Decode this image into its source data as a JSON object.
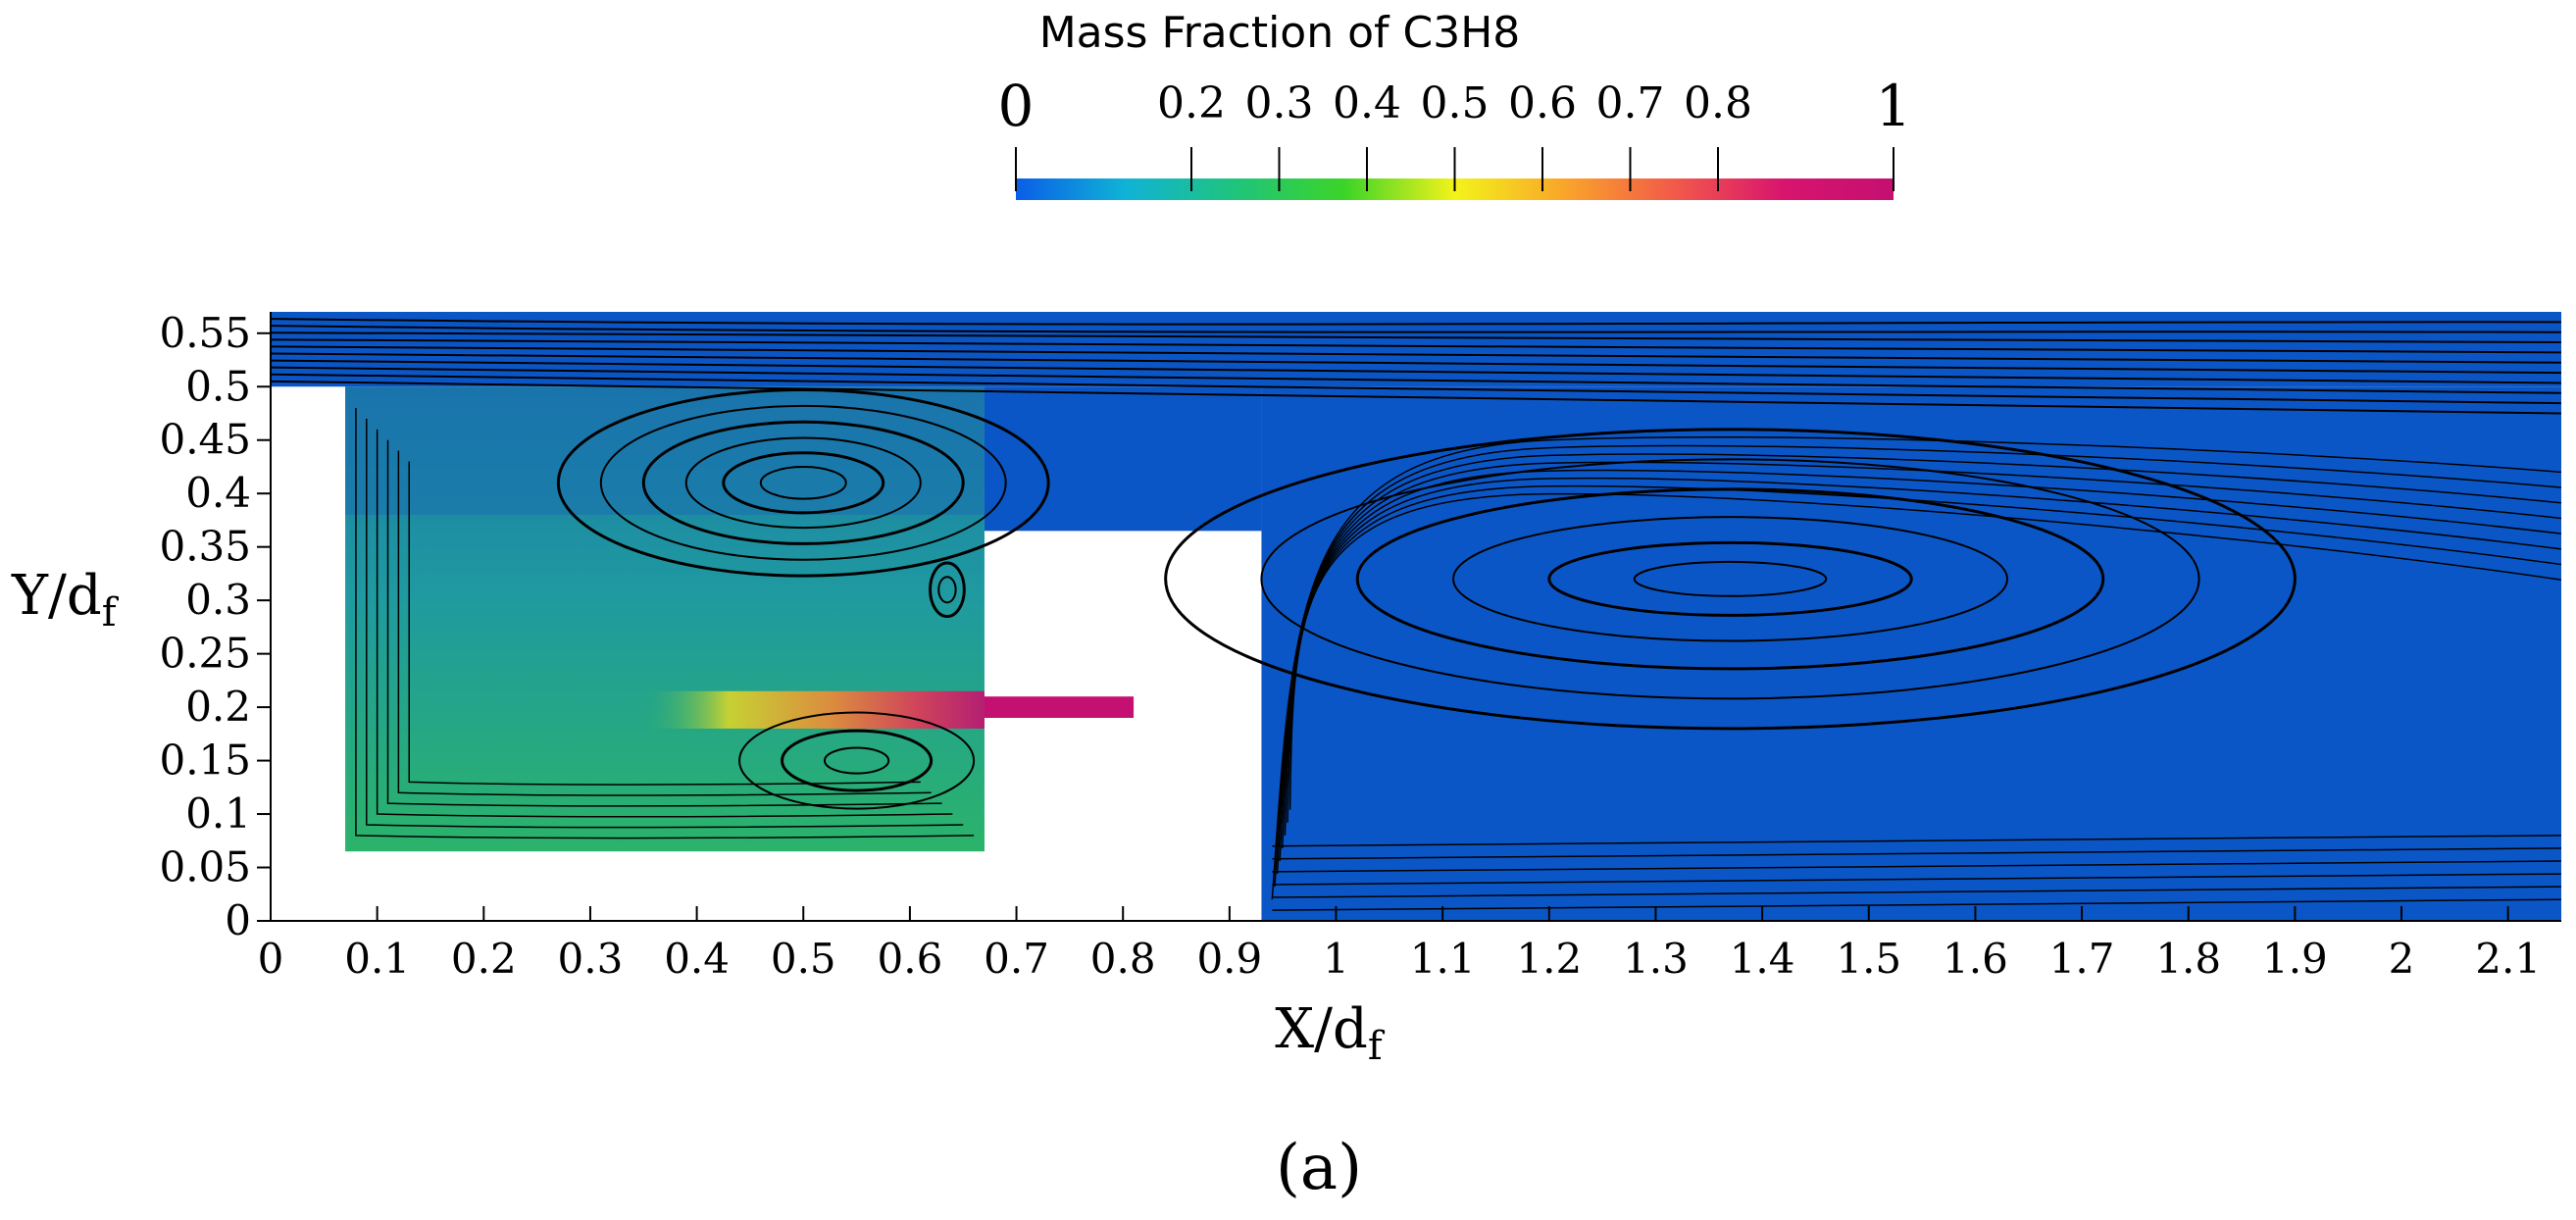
{
  "chart_data": {
    "type": "heatmap",
    "title": "Mass Fraction of C3H8",
    "subfigure_label": "(a)",
    "xlabel": {
      "main": "X/d",
      "sub": "f"
    },
    "ylabel": {
      "main": "Y/d",
      "sub": "f"
    },
    "xlim": [
      0,
      2.15
    ],
    "ylim": [
      0,
      0.57
    ],
    "x_ticks": [
      0,
      0.1,
      0.2,
      0.3,
      0.4,
      0.5,
      0.6,
      0.7,
      0.8,
      0.9,
      1,
      1.1,
      1.2,
      1.3,
      1.4,
      1.5,
      1.6,
      1.7,
      1.8,
      1.9,
      2,
      2.1
    ],
    "x_tick_labels": [
      "0",
      "0.1",
      "0.2",
      "0.3",
      "0.4",
      "0.5",
      "0.6",
      "0.7",
      "0.8",
      "0.9",
      "1",
      "1.1",
      "1.2",
      "1.3",
      "1.4",
      "1.5",
      "1.6",
      "1.7",
      "1.8",
      "1.9",
      "2",
      "2.1"
    ],
    "y_ticks": [
      0,
      0.05,
      0.1,
      0.15,
      0.2,
      0.25,
      0.3,
      0.35,
      0.4,
      0.45,
      0.5,
      0.55
    ],
    "y_tick_labels": [
      "0",
      "0.05",
      "0.1",
      "0.15",
      "0.2",
      "0.25",
      "0.3",
      "0.35",
      "0.4",
      "0.45",
      "0.5",
      "0.55"
    ],
    "colorbar": {
      "range": [
        0,
        1
      ],
      "ticks": [
        0,
        0.2,
        0.3,
        0.4,
        0.5,
        0.6,
        0.7,
        0.8,
        1
      ],
      "tick_labels": [
        "0",
        "0.2",
        "0.3",
        "0.4",
        "0.5",
        "0.6",
        "0.7",
        "0.8",
        "1"
      ],
      "colors": [
        "#0a5ee6",
        "#10b3d6",
        "#1fc47c",
        "#3cd428",
        "#f3f31a",
        "#f9a52a",
        "#f25a4a",
        "#d8146e",
        "#c41070"
      ]
    },
    "domain": {
      "outer_channel": {
        "x": [
          0,
          2.15
        ],
        "y": [
          0.5,
          0.57
        ],
        "value": 0.02
      },
      "cavity": {
        "x": [
          0.07,
          0.67
        ],
        "y": [
          0.065,
          0.5
        ],
        "value": 0.3
      },
      "fuel_jet": {
        "x": [
          0.67,
          0.81
        ],
        "y": [
          0.19,
          0.21
        ],
        "value": 1.0
      },
      "downstream": {
        "x": [
          0.93,
          2.15
        ],
        "y": [
          0,
          0.5
        ],
        "value": 0.02
      },
      "obstacle_gap": {
        "x": [
          0.67,
          0.93
        ],
        "y": [
          0.365,
          0.5
        ],
        "value": 0.02
      }
    },
    "vortices": [
      {
        "center": [
          0.5,
          0.41
        ],
        "rx": [
          0.04,
          0.075,
          0.11,
          0.15,
          0.19,
          0.23
        ],
        "ry": [
          0.015,
          0.028,
          0.042,
          0.057,
          0.072,
          0.087
        ]
      },
      {
        "center": [
          1.37,
          0.32
        ],
        "rx": [
          0.09,
          0.17,
          0.26,
          0.35,
          0.44,
          0.53
        ],
        "ry": [
          0.016,
          0.034,
          0.058,
          0.084,
          0.112,
          0.14
        ]
      },
      {
        "center": [
          0.55,
          0.15
        ],
        "rx": [
          0.03,
          0.07,
          0.11
        ],
        "ry": [
          0.012,
          0.028,
          0.045
        ]
      },
      {
        "center": [
          0.635,
          0.31
        ],
        "rx": [
          0.008,
          0.016
        ],
        "ry": [
          0.012,
          0.025
        ]
      }
    ]
  }
}
